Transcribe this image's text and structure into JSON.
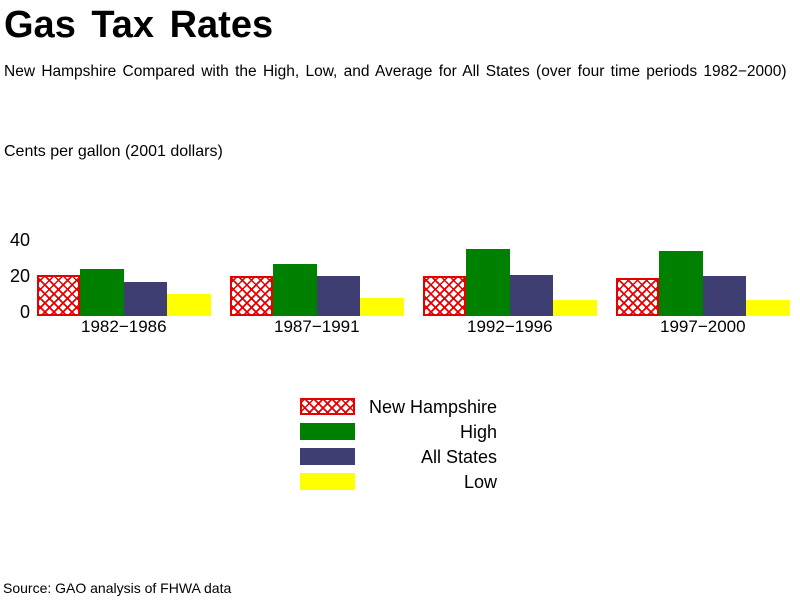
{
  "page": {
    "title": "Gas Tax Rates",
    "subtitle": "New Hampshire Compared with the High, Low, and Average for All States (over four time periods 1982−2000)",
    "source": "Source: GAO analysis of FHWA data"
  },
  "chart_data": {
    "type": "bar",
    "title": "Gas Tax Rates",
    "subtitle": "New Hampshire Compared with the High, Low, and Average for All States (over four time periods 1982−2000)",
    "ylabel": "Cents per gallon (2001 dollars)",
    "xlabel": "",
    "categories": [
      "1982−1986",
      "1987−1991",
      "1992−1996",
      "1997−2000"
    ],
    "series": [
      {
        "name": "New Hampshire",
        "pattern": "crosshatch",
        "color": "#e60000",
        "values": [
          23,
          22,
          22,
          21
        ]
      },
      {
        "name": "High",
        "pattern": "solid",
        "color": "#008000",
        "values": [
          26,
          29,
          37,
          36
        ]
      },
      {
        "name": "All States",
        "pattern": "solid",
        "color": "#3e3e73",
        "values": [
          19,
          22,
          23,
          22
        ]
      },
      {
        "name": "Low",
        "pattern": "solid",
        "color": "#ffff00",
        "values": [
          12,
          10,
          9,
          9
        ]
      }
    ],
    "y_ticks": [
      0,
      20,
      40
    ],
    "ylim": [
      0,
      40
    ],
    "grid": false,
    "legend_position": "bottom-center",
    "legend_labels_alignment": "right"
  }
}
